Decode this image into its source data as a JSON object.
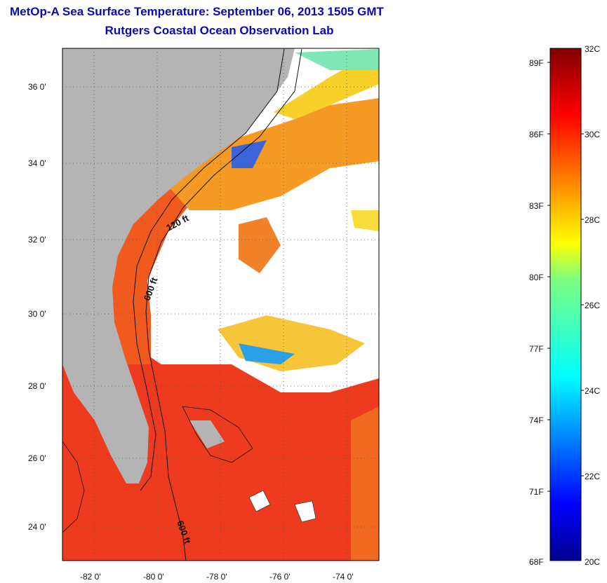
{
  "title": {
    "line1": "MetOp-A Sea Surface Temperature:  September 06, 2013 1505 GMT",
    "line2": "Rutgers Coastal Ocean Observation Lab"
  },
  "map": {
    "lat_ticks": [
      "36 0'",
      "34 0'",
      "32 0'",
      "30 0'",
      "28 0'",
      "26 0'",
      "24 0'"
    ],
    "lon_ticks": [
      "-82 0'",
      "-80 0'",
      "-78 0'",
      "-76 0'",
      "-74 0'"
    ],
    "isobath_labels": [
      "120 ft",
      "600 ft",
      "600 ft"
    ],
    "land_color": "#b4b4b4",
    "cloud_color": "#ffffff"
  },
  "colorbar": {
    "fahrenheit_labels": [
      "89F",
      "86F",
      "83F",
      "80F",
      "77F",
      "74F",
      "71F",
      "68F"
    ],
    "celsius_labels": [
      "32C",
      "30C",
      "28C",
      "26C",
      "24C",
      "22C",
      "20C"
    ],
    "colormap": "jet",
    "min_c": 20,
    "max_c": 32
  }
}
